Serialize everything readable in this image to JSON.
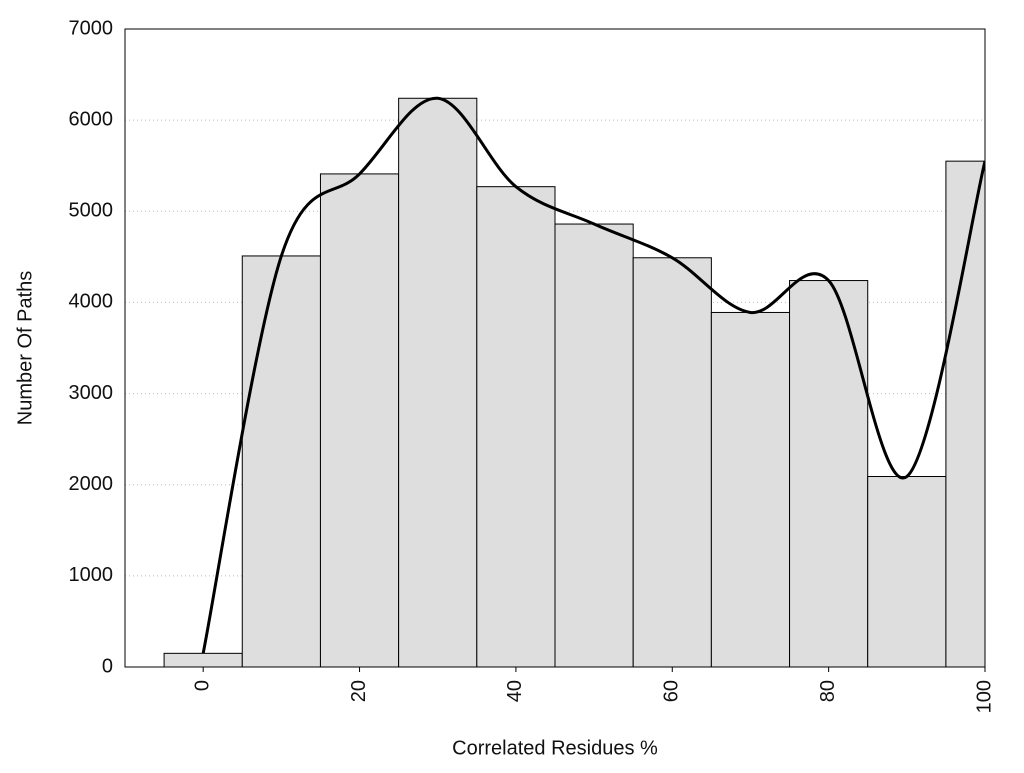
{
  "chart_data": {
    "type": "histogram",
    "x_label": "Correlated Residues %",
    "y_label": "Number Of Paths",
    "bins": [
      -5,
      5,
      15,
      25,
      35,
      45,
      55,
      65,
      75,
      85,
      95,
      105
    ],
    "values": [
      150,
      4510,
      5410,
      6240,
      5270,
      4860,
      4490,
      3890,
      4240,
      2090,
      5550
    ],
    "color": "#dedede",
    "edge_color": "#000000",
    "smooth_line": true,
    "line_color": "#000000",
    "xlim": [
      -10,
      100
    ],
    "xticks": [
      0,
      20,
      40,
      60,
      80,
      100
    ],
    "ylim": [
      0,
      7000
    ],
    "yticks": [
      0,
      1000,
      2000,
      3000,
      4000,
      5000,
      6000,
      7000
    ],
    "grid": true
  }
}
